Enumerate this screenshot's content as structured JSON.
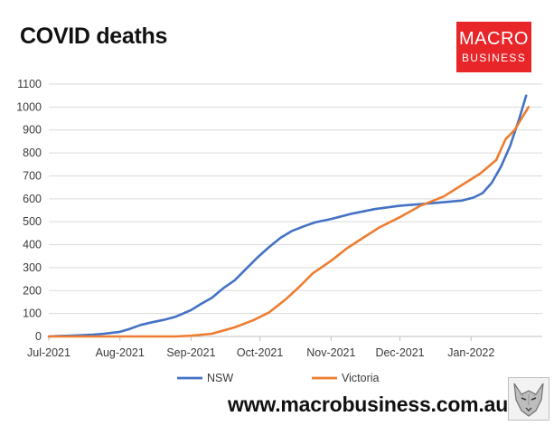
{
  "header": {
    "title": "COVID deaths"
  },
  "logo": {
    "line1": "MACRO",
    "line2": "BUSINESS",
    "color": "#e8262a"
  },
  "footer": {
    "url": "www.macrobusiness.com.au"
  },
  "colors": {
    "nsw": "#4472c4",
    "victoria": "#ed7d31",
    "grid": "#d9d9d9",
    "axis": "#bfbfbf"
  },
  "chart_data": {
    "type": "line",
    "title": "COVID deaths",
    "ylim": [
      0,
      1100
    ],
    "y_ticks": [
      0,
      100,
      200,
      300,
      400,
      500,
      600,
      700,
      800,
      900,
      1000,
      1100
    ],
    "x_ticks": [
      {
        "label": "Jul-2021",
        "date": "2021-07-01"
      },
      {
        "label": "Aug-2021",
        "date": "2021-08-01"
      },
      {
        "label": "Sep-2021",
        "date": "2021-09-01"
      },
      {
        "label": "Oct-2021",
        "date": "2021-10-01"
      },
      {
        "label": "Nov-2021",
        "date": "2021-11-01"
      },
      {
        "label": "Dec-2021",
        "date": "2021-12-01"
      },
      {
        "label": "Jan-2022",
        "date": "2022-01-01"
      }
    ],
    "x_range": [
      "2021-07-01",
      "2022-02-01"
    ],
    "grid": "horizontal",
    "legend": "bottom",
    "series": [
      {
        "name": "NSW",
        "color": "#4472c4",
        "points": [
          [
            "2021-07-01",
            0
          ],
          [
            "2021-07-05",
            2
          ],
          [
            "2021-07-10",
            3
          ],
          [
            "2021-07-15",
            5
          ],
          [
            "2021-07-20",
            8
          ],
          [
            "2021-07-25",
            12
          ],
          [
            "2021-08-01",
            20
          ],
          [
            "2021-08-05",
            32
          ],
          [
            "2021-08-10",
            50
          ],
          [
            "2021-08-15",
            62
          ],
          [
            "2021-08-20",
            72
          ],
          [
            "2021-08-25",
            85
          ],
          [
            "2021-09-01",
            115
          ],
          [
            "2021-09-05",
            140
          ],
          [
            "2021-09-10",
            168
          ],
          [
            "2021-09-15",
            210
          ],
          [
            "2021-09-20",
            245
          ],
          [
            "2021-09-25",
            295
          ],
          [
            "2021-09-30",
            345
          ],
          [
            "2021-10-05",
            390
          ],
          [
            "2021-10-10",
            430
          ],
          [
            "2021-10-15",
            460
          ],
          [
            "2021-10-20",
            480
          ],
          [
            "2021-10-25",
            497
          ],
          [
            "2021-11-01",
            512
          ],
          [
            "2021-11-10",
            535
          ],
          [
            "2021-11-20",
            555
          ],
          [
            "2021-12-01",
            570
          ],
          [
            "2021-12-10",
            577
          ],
          [
            "2021-12-20",
            585
          ],
          [
            "2021-12-28",
            592
          ],
          [
            "2022-01-02",
            605
          ],
          [
            "2022-01-06",
            625
          ],
          [
            "2022-01-10",
            670
          ],
          [
            "2022-01-14",
            740
          ],
          [
            "2022-01-18",
            830
          ],
          [
            "2022-01-22",
            950
          ],
          [
            "2022-01-25",
            1050
          ]
        ]
      },
      {
        "name": "Victoria",
        "color": "#ed7d31",
        "points": [
          [
            "2021-07-01",
            0
          ],
          [
            "2021-08-01",
            0
          ],
          [
            "2021-08-25",
            0
          ],
          [
            "2021-09-01",
            3
          ],
          [
            "2021-09-10",
            12
          ],
          [
            "2021-09-20",
            40
          ],
          [
            "2021-09-28",
            70
          ],
          [
            "2021-10-05",
            105
          ],
          [
            "2021-10-12",
            160
          ],
          [
            "2021-10-18",
            215
          ],
          [
            "2021-10-24",
            275
          ],
          [
            "2021-11-01",
            330
          ],
          [
            "2021-11-08",
            385
          ],
          [
            "2021-11-15",
            430
          ],
          [
            "2021-11-22",
            475
          ],
          [
            "2021-12-01",
            520
          ],
          [
            "2021-12-10",
            570
          ],
          [
            "2021-12-20",
            610
          ],
          [
            "2021-12-28",
            660
          ],
          [
            "2022-01-05",
            710
          ],
          [
            "2022-01-12",
            770
          ],
          [
            "2022-01-16",
            860
          ],
          [
            "2022-01-20",
            900
          ],
          [
            "2022-01-23",
            950
          ],
          [
            "2022-01-26",
            1000
          ]
        ]
      }
    ]
  }
}
